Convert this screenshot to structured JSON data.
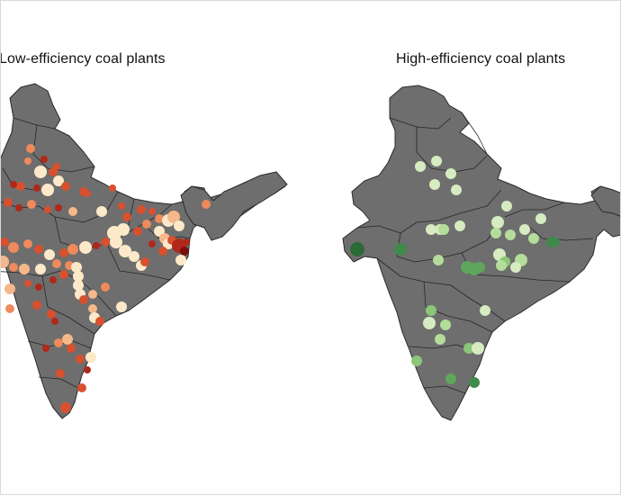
{
  "panels": [
    {
      "title": "Low-efficiency coal plants",
      "land_color": "#6e6e6e",
      "palette": [
        "#fde9c9",
        "#f6b88a",
        "#ee8a5c",
        "#d8502e",
        "#b0281a",
        "#7a0f0a"
      ]
    },
    {
      "title": "High-efficiency coal plants",
      "land_color": "#6e6e6e",
      "palette": [
        "#d6ebc0",
        "#b4dc9a",
        "#8cc679",
        "#5fa65c",
        "#3f8a4a",
        "#2a6b38"
      ]
    }
  ]
}
